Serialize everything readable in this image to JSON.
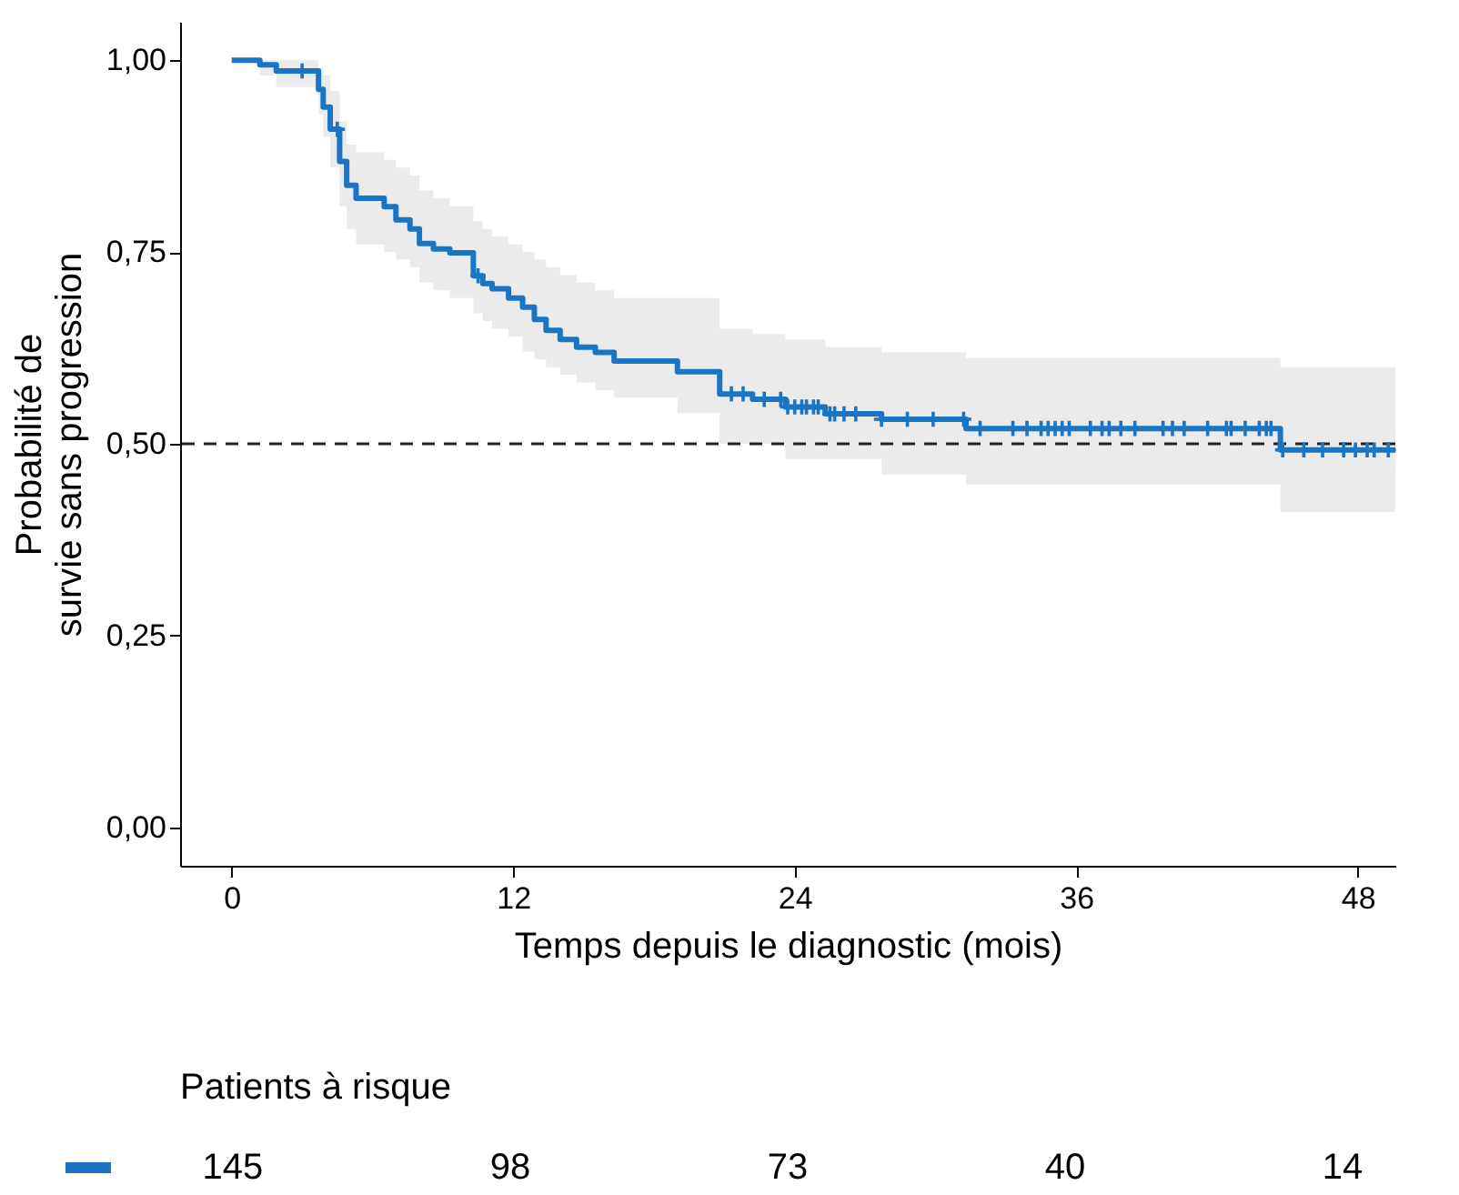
{
  "chart_data": [
    {
      "type": "step",
      "xlabel": "Temps depuis le diagnostic (mois)",
      "ylabel": "Probabilité de\nsurvie sans progression",
      "xlim": [
        -2.2,
        49.6
      ],
      "ylim": [
        -0.05,
        1.05
      ],
      "xticks": [
        0,
        12,
        24,
        36,
        48
      ],
      "yticks": [
        {
          "value": 0,
          "label": "0,00"
        },
        {
          "value": 0.25,
          "label": "0,25"
        },
        {
          "value": 0.5,
          "label": "0,50"
        },
        {
          "value": 0.75,
          "label": "0,75"
        },
        {
          "value": 1,
          "label": "1,00"
        }
      ],
      "grid": false,
      "series": [
        {
          "color": "#1a75c4",
          "x": [
            0,
            1.2,
            1.9,
            3.7,
            3.9,
            4.2,
            4.6,
            4.9,
            5.3,
            6.5,
            7.0,
            7.6,
            8.0,
            8.6,
            9.3,
            10.3,
            10.7,
            11.1,
            11.8,
            12.4,
            12.9,
            13.4,
            14.0,
            14.7,
            15.5,
            16.3,
            19.0,
            20.8,
            22.2,
            23.6,
            25.3,
            27.7,
            31.3,
            44.7,
            49.6
          ],
          "values": [
            1.0,
            0.994,
            0.986,
            0.962,
            0.939,
            0.91,
            0.868,
            0.837,
            0.82,
            0.809,
            0.792,
            0.78,
            0.761,
            0.754,
            0.749,
            0.719,
            0.709,
            0.702,
            0.69,
            0.678,
            0.662,
            0.648,
            0.636,
            0.626,
            0.619,
            0.608,
            0.594,
            0.565,
            0.558,
            0.548,
            0.539,
            0.532,
            0.52,
            0.492,
            0.492
          ],
          "lower": [
            1.0,
            0.98,
            0.965,
            0.93,
            0.9,
            0.86,
            0.81,
            0.78,
            0.76,
            0.75,
            0.74,
            0.73,
            0.71,
            0.7,
            0.69,
            0.67,
            0.66,
            0.65,
            0.64,
            0.62,
            0.61,
            0.6,
            0.59,
            0.58,
            0.57,
            0.56,
            0.54,
            0.5,
            0.5,
            0.48,
            0.48,
            0.46,
            0.447,
            0.411,
            0.411
          ],
          "upper": [
            1.0,
            1.0,
            1.0,
            0.99,
            0.98,
            0.96,
            0.92,
            0.89,
            0.88,
            0.87,
            0.86,
            0.85,
            0.83,
            0.82,
            0.81,
            0.79,
            0.78,
            0.77,
            0.76,
            0.75,
            0.74,
            0.73,
            0.72,
            0.71,
            0.7,
            0.69,
            0.69,
            0.65,
            0.643,
            0.636,
            0.626,
            0.619,
            0.612,
            0.6,
            0.6
          ]
        },
        {
          "type": "scatter",
          "marker": "cross",
          "color": "#1a75c4",
          "x": [
            3.0,
            4.5,
            10.5,
            21.3,
            21.8,
            22.7,
            23.4,
            23.7,
            24.0,
            24.3,
            24.5,
            24.8,
            25.0,
            25.5,
            25.7,
            26.1,
            26.6,
            27.7,
            28.8,
            29.9,
            31.2,
            31.9,
            33.3,
            33.9,
            34.5,
            34.8,
            35.1,
            35.4,
            35.7,
            36.6,
            37.1,
            37.4,
            37.9,
            38.5,
            39.7,
            40.1,
            40.6,
            41.6,
            42.4,
            42.6,
            43.2,
            43.8,
            44.1,
            44.3,
            44.8,
            45.7,
            46.5,
            47.4,
            47.9,
            48.4,
            48.7,
            49.3
          ],
          "values": [
            0.986,
            0.91,
            0.719,
            0.565,
            0.565,
            0.558,
            0.558,
            0.548,
            0.548,
            0.548,
            0.548,
            0.548,
            0.548,
            0.539,
            0.539,
            0.539,
            0.539,
            0.532,
            0.532,
            0.532,
            0.532,
            0.52,
            0.52,
            0.52,
            0.52,
            0.52,
            0.52,
            0.52,
            0.52,
            0.52,
            0.52,
            0.52,
            0.52,
            0.52,
            0.52,
            0.52,
            0.52,
            0.52,
            0.52,
            0.52,
            0.52,
            0.52,
            0.52,
            0.52,
            0.492,
            0.492,
            0.492,
            0.492,
            0.492,
            0.492,
            0.492,
            0.492
          ]
        }
      ],
      "ref_lines": [
        {
          "axis": "y",
          "value": 0.5,
          "color": "#222222",
          "line_style": "dashed"
        }
      ]
    },
    {
      "type": "other",
      "title": "Patients à risque",
      "categories": [
        null,
        null,
        null,
        null,
        null
      ],
      "values": [
        145,
        98,
        73,
        40,
        14
      ],
      "color": "#1a75c4",
      "data_labels": true
    }
  ]
}
